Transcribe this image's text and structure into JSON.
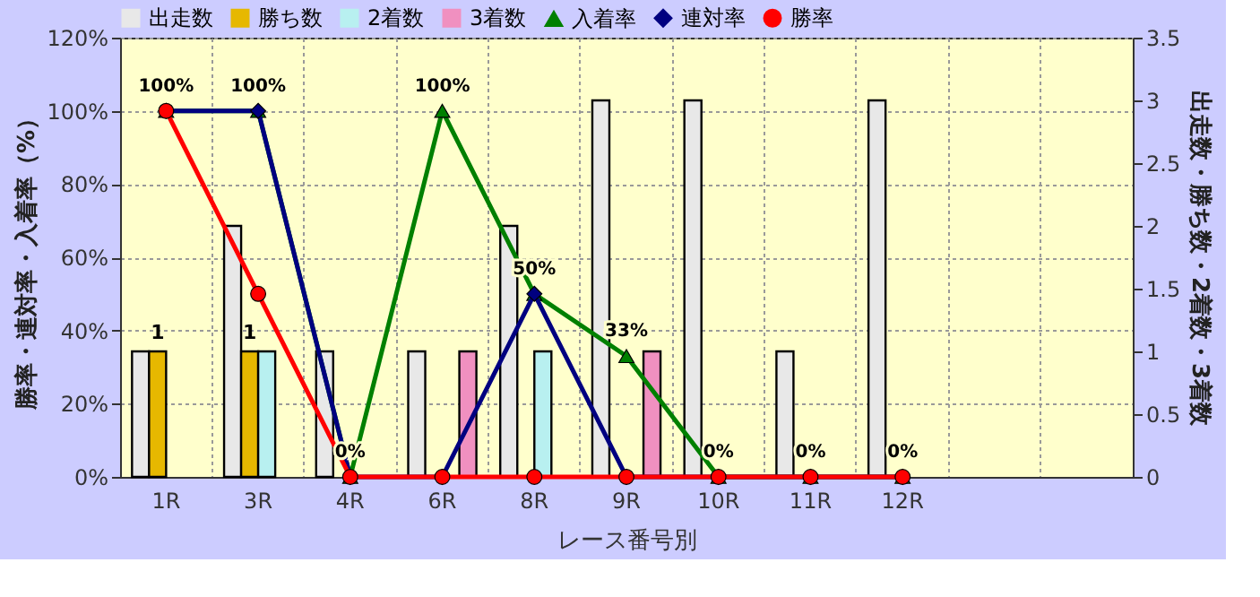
{
  "chart_data": {
    "type": "bar",
    "xlabel": "レース番号別",
    "ylabel": "勝率・連対率・入着率（%）",
    "y2label": "出走数・勝ち数・2着数・3着数",
    "categories": [
      "1R",
      "3R",
      "4R",
      "6R",
      "8R",
      "9R",
      "10R",
      "11R",
      "12R",
      null,
      null
    ],
    "ylim": [
      0,
      120
    ],
    "yticks": [
      {
        "value": 0,
        "label": "0%"
      },
      {
        "value": 20,
        "label": "20%"
      },
      {
        "value": 40,
        "label": "40%"
      },
      {
        "value": 60,
        "label": "60%"
      },
      {
        "value": 80,
        "label": "80%"
      },
      {
        "value": 100,
        "label": "100%"
      },
      {
        "value": 120,
        "label": "120%"
      }
    ],
    "y2lim": [
      0,
      3.5
    ],
    "y2ticks": [
      0,
      0.5,
      1,
      1.5,
      2,
      2.5,
      3,
      3.5
    ],
    "grid": true,
    "legend": "top",
    "series": [
      {
        "name": "出走数",
        "axis": "y2",
        "color": "#e8e8e8",
        "values": [
          1,
          2,
          1,
          1,
          2,
          3,
          3,
          1,
          3,
          null,
          null
        ]
      },
      {
        "name": "勝ち数",
        "axis": "y2",
        "color": "#e6b800",
        "values": [
          1,
          1,
          null,
          null,
          null,
          null,
          null,
          null,
          null,
          null,
          null
        ],
        "value_labels": [
          "1",
          "1",
          null,
          null,
          null,
          null,
          null,
          null,
          null,
          null,
          null
        ]
      },
      {
        "name": "2着数",
        "axis": "y2",
        "color": "#b8f0f0",
        "values": [
          null,
          1,
          null,
          null,
          1,
          null,
          null,
          null,
          null,
          null,
          null
        ]
      },
      {
        "name": "3着数",
        "axis": "y2",
        "color": "#f090c0",
        "values": [
          null,
          null,
          null,
          1,
          null,
          1,
          null,
          null,
          null,
          null,
          null
        ]
      },
      {
        "name": "入着率",
        "type": "line",
        "color": "#008000",
        "marker": "triangle",
        "values": [
          100,
          100,
          0,
          100,
          50,
          33,
          0,
          0,
          0,
          null,
          null
        ],
        "value_labels": [
          "100%",
          "100%",
          "0%",
          "100%",
          "50%",
          "33%",
          "0%",
          "0%",
          "0%",
          null,
          null
        ]
      },
      {
        "name": "連対率",
        "type": "line",
        "color": "#000080",
        "marker": "diamond",
        "values": [
          100,
          100,
          0,
          0,
          50,
          0,
          0,
          0,
          0,
          null,
          null
        ]
      },
      {
        "name": "勝率",
        "type": "line",
        "color": "#ff0000",
        "marker": "circle",
        "values": [
          100,
          50,
          0,
          0,
          0,
          0,
          0,
          0,
          0,
          null,
          null
        ]
      }
    ]
  }
}
